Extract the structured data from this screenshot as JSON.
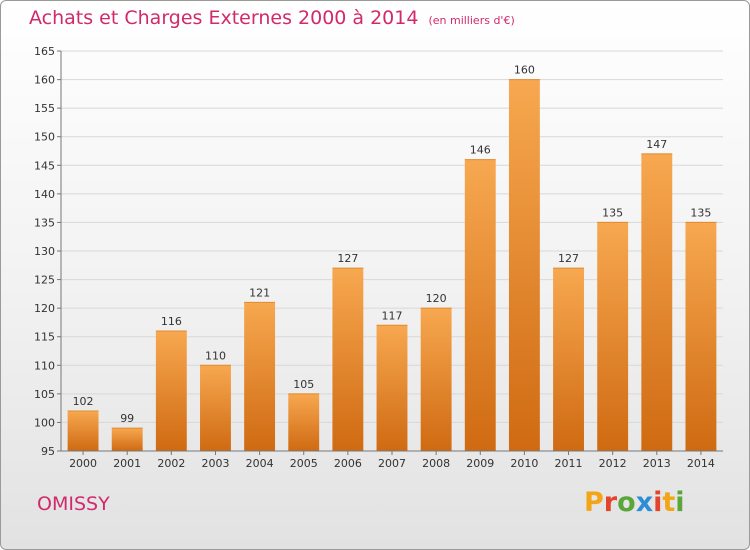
{
  "header": {
    "title": "Achats et Charges Externes 2000 à 2014",
    "unit": "(en milliers d'€)"
  },
  "footer": {
    "commune": "OMISSY",
    "brand": "Proxiti",
    "brand_letters": [
      "P",
      "r",
      "o",
      "x",
      "i",
      "t",
      "i"
    ],
    "brand_colors": [
      "#f2a516",
      "#e2452b",
      "#5aa63a",
      "#2c8ed6",
      "#e2452b",
      "#f2a516",
      "#5aa63a"
    ]
  },
  "colors": {
    "title": "#d12a6a",
    "bar_light": "#f7a850",
    "bar_dark": "#cf6a12",
    "grid": "#d8d8d8"
  },
  "chart_data": {
    "type": "bar",
    "title": "Achats et Charges Externes 2000 à 2014",
    "subtitle": "(en milliers d'€)",
    "categories": [
      "2000",
      "2001",
      "2002",
      "2003",
      "2004",
      "2005",
      "2006",
      "2007",
      "2008",
      "2009",
      "2010",
      "2011",
      "2012",
      "2013",
      "2014"
    ],
    "values": [
      102,
      99,
      116,
      110,
      121,
      105,
      127,
      117,
      120,
      146,
      160,
      127,
      135,
      147,
      135
    ],
    "ylim": [
      95,
      165
    ],
    "yticks": [
      95,
      100,
      105,
      110,
      115,
      120,
      125,
      130,
      135,
      140,
      145,
      150,
      155,
      160,
      165
    ],
    "grid": true,
    "data_labels": true
  }
}
